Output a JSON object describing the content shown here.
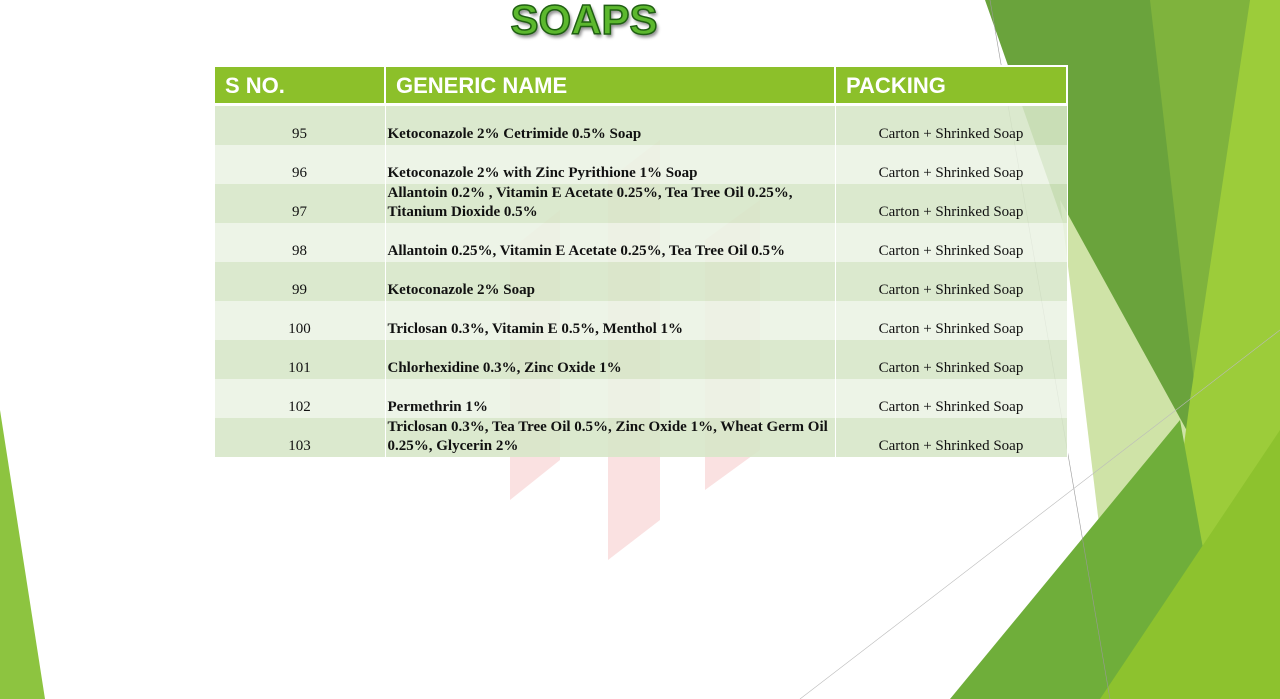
{
  "header": {
    "title": "SOAPS"
  },
  "table": {
    "columns": [
      "S NO.",
      "GENERIC NAME",
      "PACKING"
    ],
    "rows": [
      [
        "95",
        "Ketoconazole 2% Cetrimide 0.5% Soap",
        "Carton + Shrinked Soap"
      ],
      [
        "96",
        "Ketoconazole 2% with Zinc Pyrithione 1% Soap",
        "Carton + Shrinked Soap"
      ],
      [
        "97",
        "Allantoin 0.2% , Vitamin E Acetate 0.25%, Tea Tree Oil 0.25%, Titanium Dioxide 0.5%",
        "Carton + Shrinked Soap"
      ],
      [
        "98",
        "Allantoin 0.25%, Vitamin E Acetate 0.25%, Tea Tree Oil 0.5%",
        "Carton + Shrinked Soap"
      ],
      [
        "99",
        "Ketoconazole 2% Soap",
        "Carton + Shrinked Soap"
      ],
      [
        "100",
        "Triclosan 0.3%, Vitamin E 0.5%, Menthol 1%",
        "Carton + Shrinked Soap"
      ],
      [
        "101",
        "Chlorhexidine 0.3%, Zinc Oxide 1%",
        "Carton + Shrinked Soap"
      ],
      [
        "102",
        "Permethrin 1%",
        "Carton + Shrinked Soap"
      ],
      [
        "103",
        "Triclosan 0.3%, Tea Tree Oil 0.5%, Zinc Oxide 1%, Wheat Germ Oil 0.25%, Glycerin 2%",
        "Carton + Shrinked Soap"
      ]
    ]
  }
}
